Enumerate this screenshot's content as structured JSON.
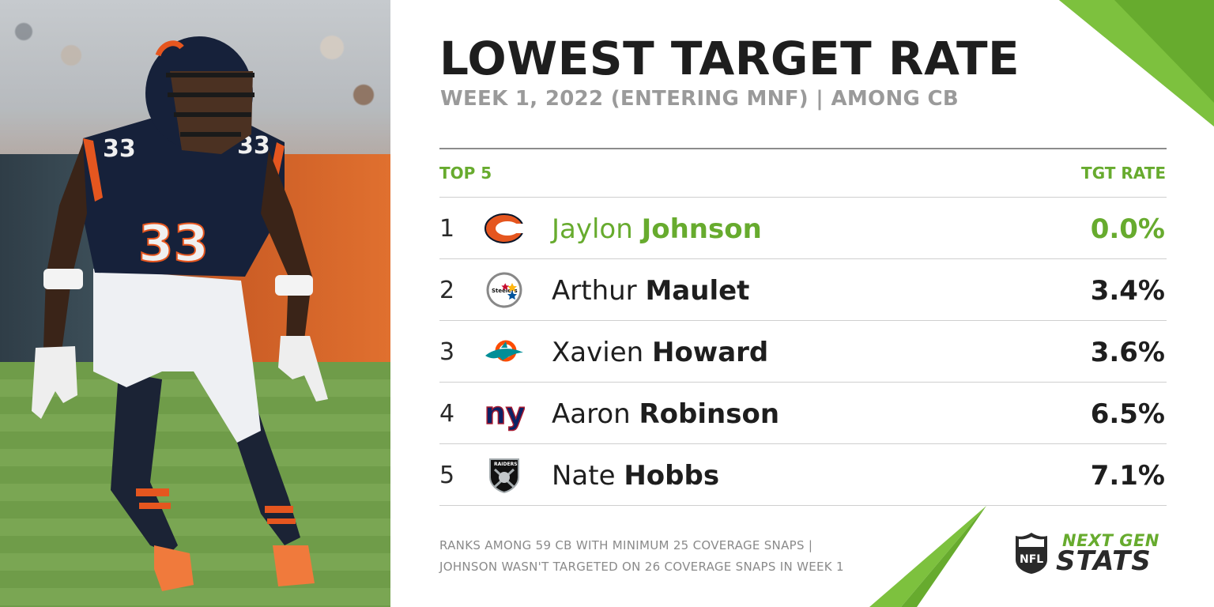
{
  "header": {
    "title": "LOWEST TARGET RATE",
    "subtitle": "WEEK 1, 2022 (ENTERING MNF) | AMONG CB"
  },
  "table": {
    "left_header": "TOP 5",
    "right_header": "TGT RATE",
    "rows": [
      {
        "rank": "1",
        "first": "Jaylon",
        "last": "Johnson",
        "rate": "0.0%",
        "team_logo": "bears-logo-icon"
      },
      {
        "rank": "2",
        "first": "Arthur",
        "last": "Maulet",
        "rate": "3.4%",
        "team_logo": "steelers-logo-icon"
      },
      {
        "rank": "3",
        "first": "Xavien",
        "last": "Howard",
        "rate": "3.6%",
        "team_logo": "dolphins-logo-icon"
      },
      {
        "rank": "4",
        "first": "Aaron",
        "last": "Robinson",
        "rate": "6.5%",
        "team_logo": "giants-logo-icon"
      },
      {
        "rank": "5",
        "first": "Nate",
        "last": "Hobbs",
        "rate": "7.1%",
        "team_logo": "raiders-logo-icon"
      }
    ]
  },
  "footnote": {
    "line1": "RANKS AMONG 59 CB WITH MINIMUM 25 COVERAGE SNAPS |",
    "line2": "JOHNSON WASN'T TARGETED ON 26 COVERAGE SNAPS IN WEEK 1"
  },
  "brand": {
    "line1": "NEXT GEN",
    "line2": "STATS",
    "shield_text": "NFL",
    "player_number": "33",
    "steelers_text": "Steelers",
    "giants_text": "ny",
    "raiders_text": "RAIDERS"
  },
  "colors": {
    "accent_green": "#67ab2e",
    "text_dark": "#1e1e1e",
    "text_gray": "#9a9a9a",
    "bears_orange": "#e5561f",
    "bears_navy": "#0b162a"
  }
}
